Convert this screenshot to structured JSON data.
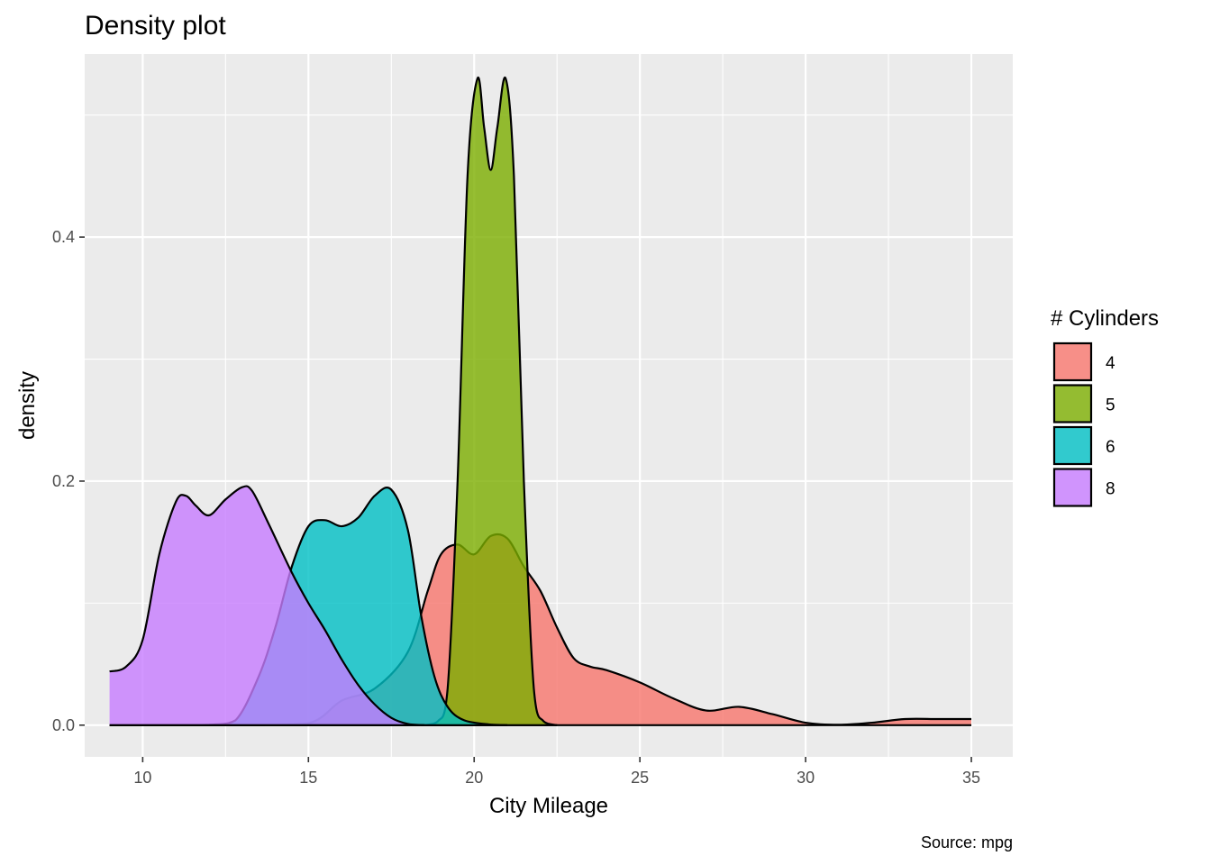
{
  "chart_data": {
    "type": "area",
    "subtype": "density",
    "title": "Density plot",
    "xlabel": "City Mileage",
    "ylabel": "density",
    "caption": "Source: mpg",
    "xlim": [
      8.25,
      36.25
    ],
    "ylim": [
      -0.026,
      0.55
    ],
    "x_ticks": [
      10,
      15,
      20,
      25,
      30,
      35
    ],
    "x_tick_labels": [
      "10",
      "15",
      "20",
      "25",
      "30",
      "35"
    ],
    "y_ticks": [
      0.0,
      0.2,
      0.4
    ],
    "y_tick_labels": [
      "0.0",
      "0.2",
      "0.4"
    ],
    "grid": true,
    "legend": {
      "title": "# Cylinders",
      "position": "right"
    },
    "series": [
      {
        "name": "4",
        "color": "#F8766D",
        "points": [
          [
            9,
            0
          ],
          [
            13,
            0
          ],
          [
            15,
            0.0015
          ],
          [
            16,
            0.02
          ],
          [
            17,
            0.03
          ],
          [
            18,
            0.06
          ],
          [
            18.6,
            0.11
          ],
          [
            19,
            0.14
          ],
          [
            19.5,
            0.148
          ],
          [
            20,
            0.14
          ],
          [
            20.5,
            0.155
          ],
          [
            21,
            0.153
          ],
          [
            21.5,
            0.13
          ],
          [
            22,
            0.11
          ],
          [
            22.5,
            0.08
          ],
          [
            23,
            0.055
          ],
          [
            23.5,
            0.048
          ],
          [
            24,
            0.045
          ],
          [
            25,
            0.035
          ],
          [
            26,
            0.022
          ],
          [
            27,
            0.012
          ],
          [
            28,
            0.015
          ],
          [
            29,
            0.009
          ],
          [
            30,
            0.002
          ],
          [
            31,
            0.0003
          ],
          [
            32,
            0.002
          ],
          [
            33,
            0.005
          ],
          [
            34,
            0.005
          ],
          [
            35,
            0.005
          ]
        ]
      },
      {
        "name": "5",
        "color": "#7CAE00",
        "points": [
          [
            18.5,
            0
          ],
          [
            18.9,
            0.003
          ],
          [
            19.2,
            0.03
          ],
          [
            19.5,
            0.2
          ],
          [
            19.8,
            0.45
          ],
          [
            20.1,
            0.53
          ],
          [
            20.3,
            0.49
          ],
          [
            20.5,
            0.455
          ],
          [
            20.7,
            0.49
          ],
          [
            20.95,
            0.53
          ],
          [
            21.2,
            0.45
          ],
          [
            21.5,
            0.2
          ],
          [
            21.8,
            0.03
          ],
          [
            22.1,
            0.003
          ],
          [
            22.5,
            0
          ]
        ]
      },
      {
        "name": "6",
        "color": "#00BFC4",
        "points": [
          [
            9,
            0
          ],
          [
            11,
            0
          ],
          [
            12,
            0.0003
          ],
          [
            12.8,
            0.004
          ],
          [
            13.5,
            0.04
          ],
          [
            14,
            0.08
          ],
          [
            14.5,
            0.13
          ],
          [
            15,
            0.163
          ],
          [
            15.5,
            0.168
          ],
          [
            16,
            0.163
          ],
          [
            16.5,
            0.17
          ],
          [
            17,
            0.188
          ],
          [
            17.5,
            0.193
          ],
          [
            18,
            0.16
          ],
          [
            18.4,
            0.09
          ],
          [
            18.8,
            0.04
          ],
          [
            19.2,
            0.015
          ],
          [
            19.7,
            0.004
          ],
          [
            20.5,
            0.0005
          ],
          [
            21,
            0
          ]
        ]
      },
      {
        "name": "8",
        "color": "#C77CFF",
        "points": [
          [
            9,
            0.044
          ],
          [
            9.5,
            0.048
          ],
          [
            10,
            0.07
          ],
          [
            10.5,
            0.14
          ],
          [
            11,
            0.183
          ],
          [
            11.3,
            0.188
          ],
          [
            11.6,
            0.18
          ],
          [
            12,
            0.172
          ],
          [
            12.5,
            0.185
          ],
          [
            13,
            0.195
          ],
          [
            13.3,
            0.192
          ],
          [
            13.8,
            0.165
          ],
          [
            14.5,
            0.125
          ],
          [
            15,
            0.1
          ],
          [
            15.5,
            0.078
          ],
          [
            16,
            0.054
          ],
          [
            16.5,
            0.033
          ],
          [
            17,
            0.017
          ],
          [
            17.5,
            0.006
          ],
          [
            18,
            0.001
          ],
          [
            18.5,
            0
          ]
        ]
      }
    ]
  }
}
